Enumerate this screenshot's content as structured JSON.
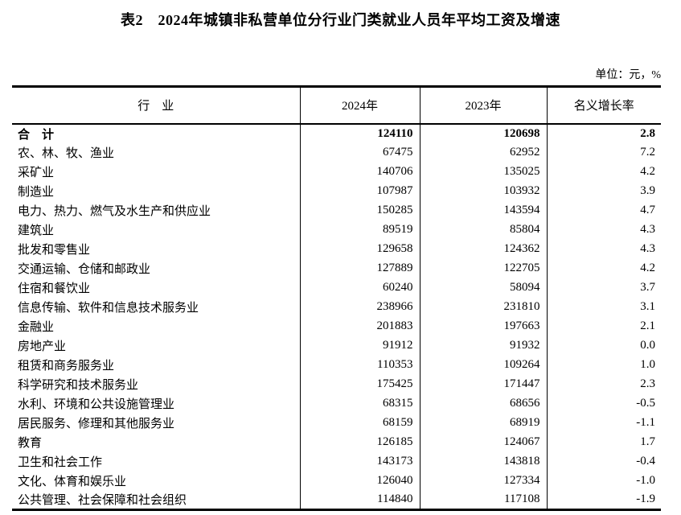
{
  "page": {
    "title": "表2　2024年城镇非私营单位分行业门类就业人员年平均工资及增速",
    "unit_label": "单位：元，%"
  },
  "chart_data": {
    "type": "table",
    "title": "表2　2024年城镇非私营单位分行业门类就业人员年平均工资及增速",
    "unit": "单位：元，%",
    "columns": [
      "行　业",
      "2024年",
      "2023年",
      "名义增长率"
    ],
    "bold_row_index": 0,
    "rows": [
      [
        "合　计",
        "124110",
        "120698",
        "2.8"
      ],
      [
        "农、林、牧、渔业",
        "67475",
        "62952",
        "7.2"
      ],
      [
        "采矿业",
        "140706",
        "135025",
        "4.2"
      ],
      [
        "制造业",
        "107987",
        "103932",
        "3.9"
      ],
      [
        "电力、热力、燃气及水生产和供应业",
        "150285",
        "143594",
        "4.7"
      ],
      [
        "建筑业",
        "89519",
        "85804",
        "4.3"
      ],
      [
        "批发和零售业",
        "129658",
        "124362",
        "4.3"
      ],
      [
        "交通运输、仓储和邮政业",
        "127889",
        "122705",
        "4.2"
      ],
      [
        "住宿和餐饮业",
        "60240",
        "58094",
        "3.7"
      ],
      [
        "信息传输、软件和信息技术服务业",
        "238966",
        "231810",
        "3.1"
      ],
      [
        "金融业",
        "201883",
        "197663",
        "2.1"
      ],
      [
        "房地产业",
        "91912",
        "91932",
        "0.0"
      ],
      [
        "租赁和商务服务业",
        "110353",
        "109264",
        "1.0"
      ],
      [
        "科学研究和技术服务业",
        "175425",
        "171447",
        "2.3"
      ],
      [
        "水利、环境和公共设施管理业",
        "68315",
        "68656",
        "-0.5"
      ],
      [
        "居民服务、修理和其他服务业",
        "68159",
        "68919",
        "-1.1"
      ],
      [
        "教育",
        "126185",
        "124067",
        "1.7"
      ],
      [
        "卫生和社会工作",
        "143173",
        "143818",
        "-0.4"
      ],
      [
        "文化、体育和娱乐业",
        "126040",
        "127334",
        "-1.0"
      ],
      [
        "公共管理、社会保障和社会组织",
        "114840",
        "117108",
        "-1.9"
      ]
    ]
  }
}
